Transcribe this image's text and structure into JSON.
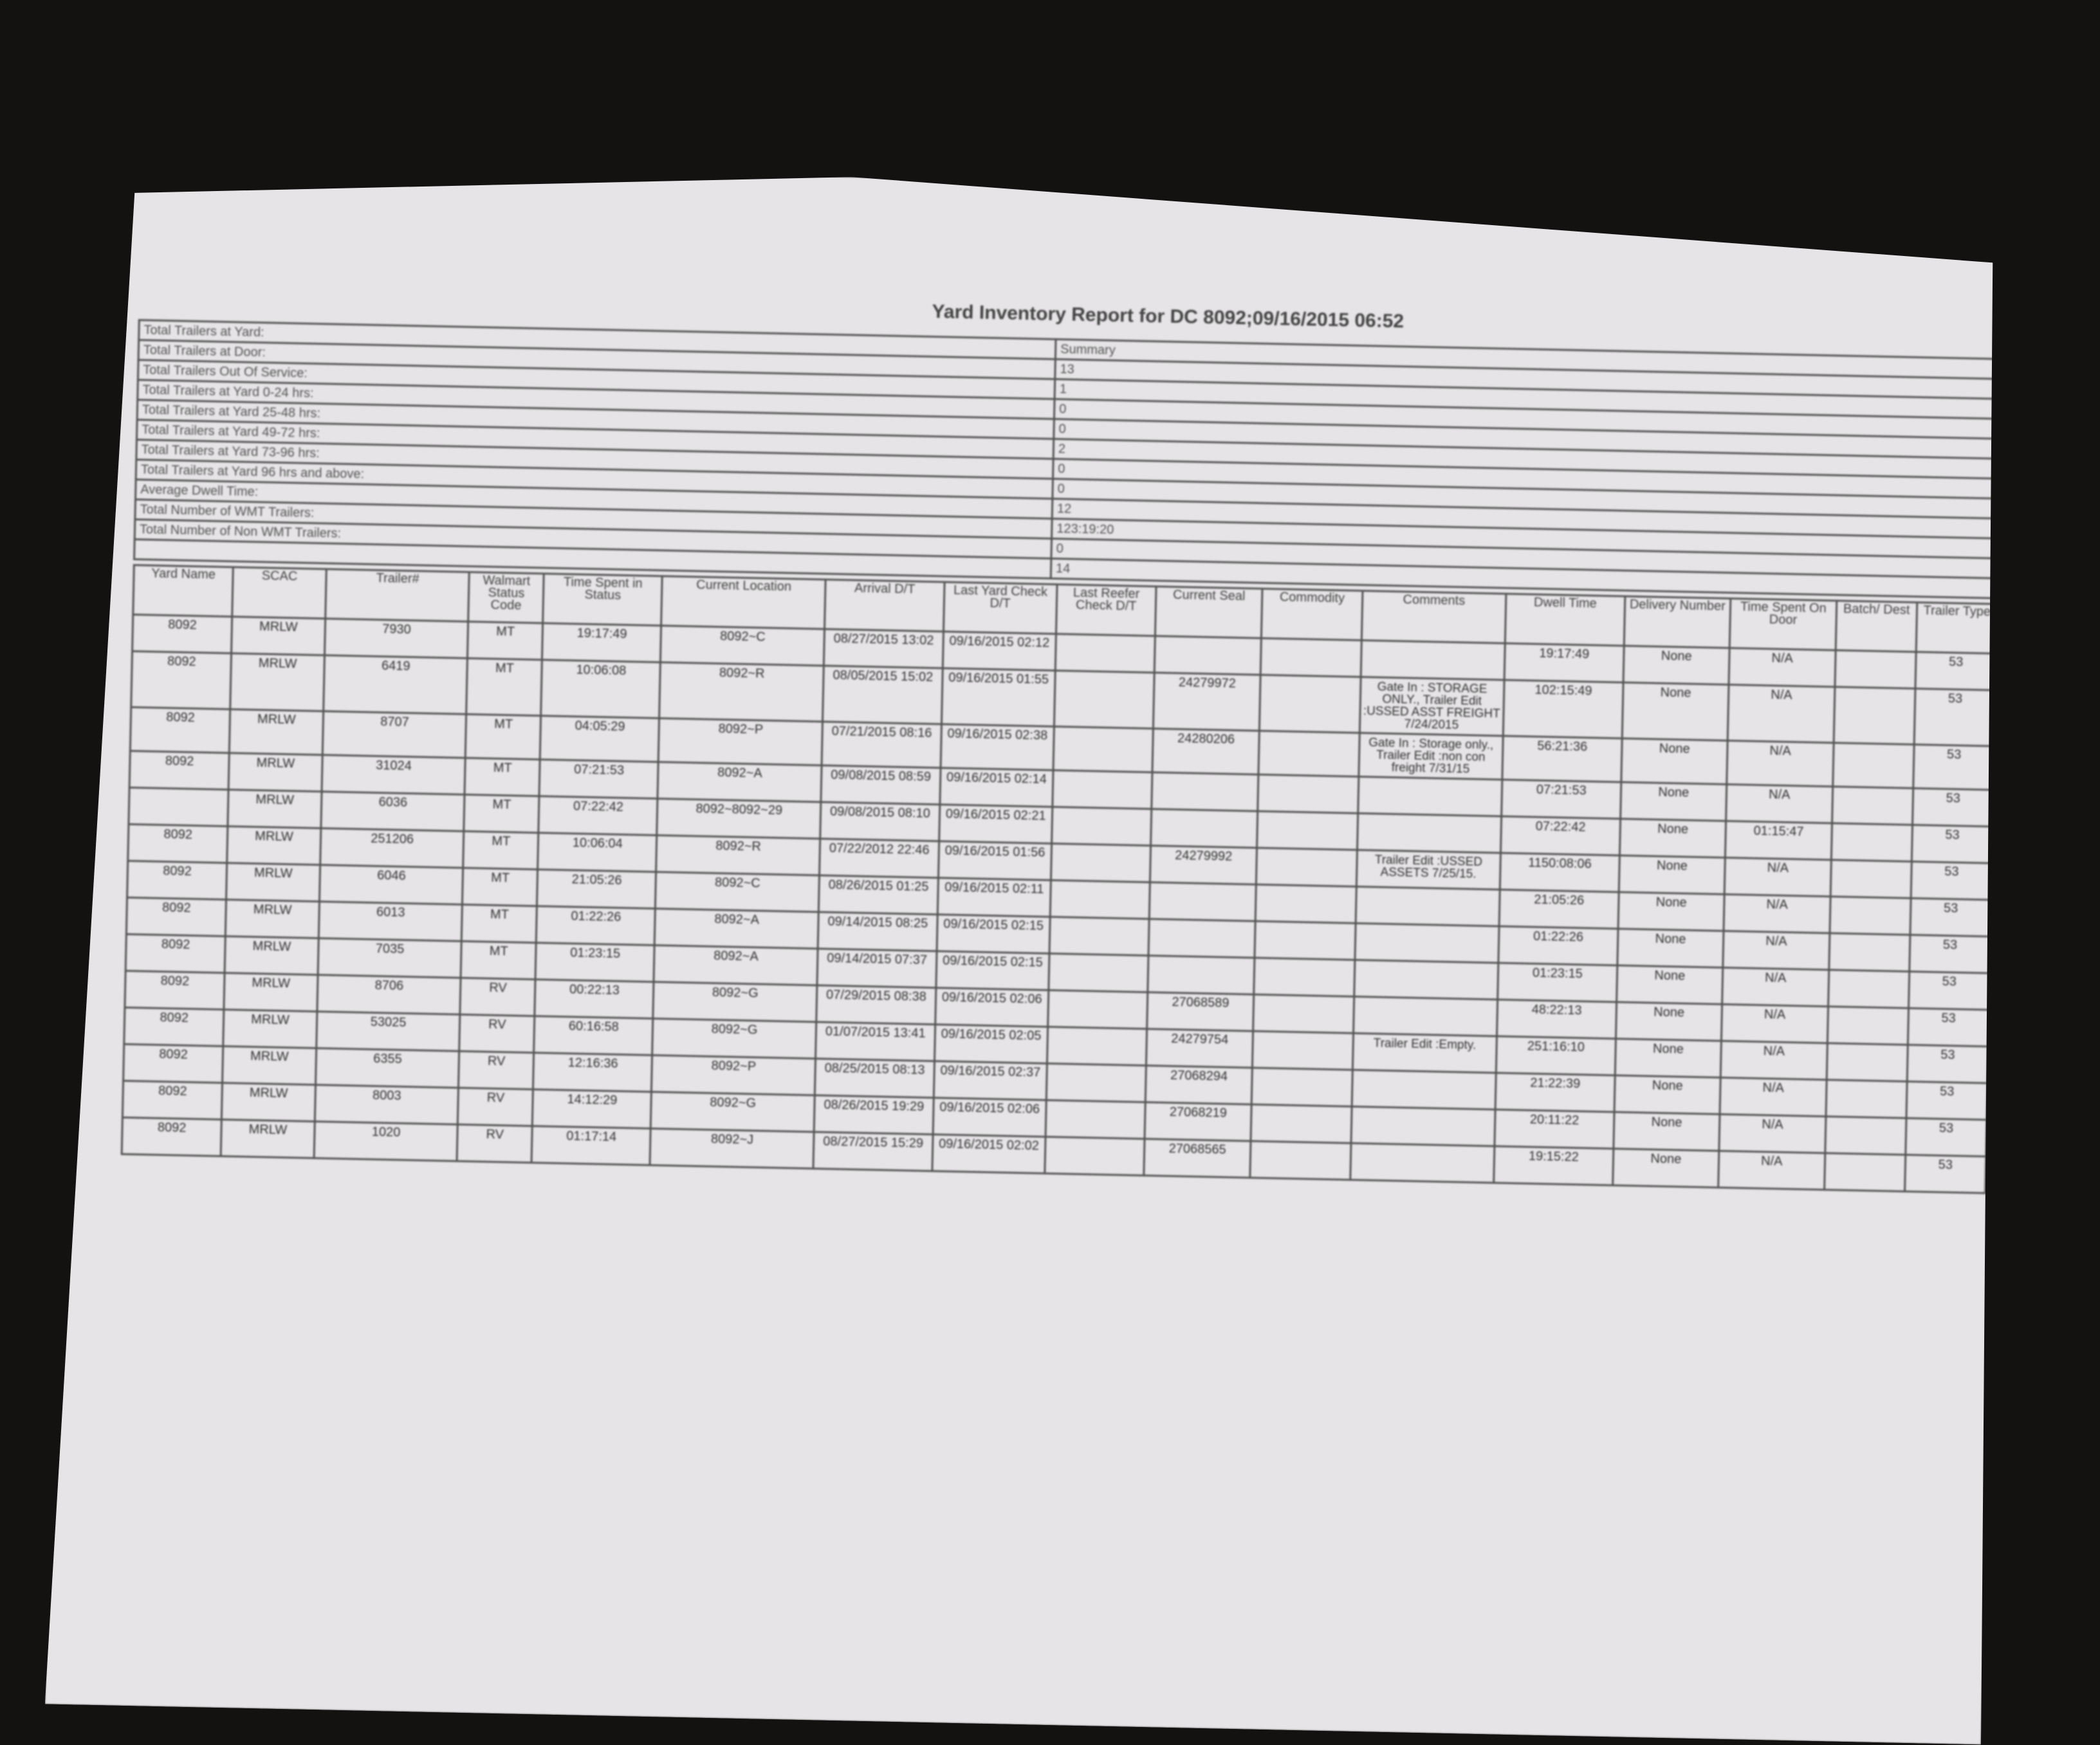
{
  "title": "Yard Inventory Report for DC 8092;09/16/2015 06:52",
  "summary": {
    "header": "Summary",
    "rows": [
      {
        "label": "Total Trailers at Yard:",
        "value": "Summary"
      },
      {
        "label": "Total Trailers at Door:",
        "value": "13"
      },
      {
        "label": "Total Trailers Out Of Service:",
        "value": "1"
      },
      {
        "label": "Total Trailers at Yard 0-24 hrs:",
        "value": "0"
      },
      {
        "label": "Total Trailers at Yard 25-48 hrs:",
        "value": "0"
      },
      {
        "label": "Total Trailers at Yard 49-72 hrs:",
        "value": "2"
      },
      {
        "label": "Total Trailers at Yard 73-96 hrs:",
        "value": "0"
      },
      {
        "label": "Total Trailers at Yard 96 hrs and above:",
        "value": "0"
      },
      {
        "label": "Average Dwell Time:",
        "value": "12"
      },
      {
        "label": "Total Number of WMT Trailers:",
        "value": "123:19:20"
      },
      {
        "label": "Total Number of Non WMT Trailers:",
        "value": "0"
      },
      {
        "label": "",
        "value": "14"
      }
    ]
  },
  "table": {
    "columns": [
      "Yard Name",
      "SCAC",
      "Trailer#",
      "Walmart Status Code",
      "Time Spent in Status",
      "Current Location",
      "Arrival D/T",
      "Last Yard Check D/T",
      "Last Reefer Check D/T",
      "Current Seal",
      "Commodity",
      "Comments",
      "Dwell Time",
      "Delivery Number",
      "Time Spent On Door",
      "Batch/ Dest",
      "Trailer Type"
    ],
    "rows": [
      [
        "8092",
        "MRLW",
        "7930",
        "MT",
        "19:17:49",
        "8092~C",
        "08/27/2015 13:02",
        "09/16/2015 02:12",
        "",
        "",
        "",
        "",
        "19:17:49",
        "None",
        "N/A",
        "",
        "53"
      ],
      [
        "8092",
        "MRLW",
        "6419",
        "MT",
        "10:06:08",
        "8092~R",
        "08/05/2015 15:02",
        "09/16/2015 01:55",
        "",
        "24279972",
        "",
        "Gate In : STORAGE ONLY., Trailer Edit :USSED ASST FREIGHT 7/24/2015",
        "102:15:49",
        "None",
        "N/A",
        "",
        "53"
      ],
      [
        "8092",
        "MRLW",
        "8707",
        "MT",
        "04:05:29",
        "8092~P",
        "07/21/2015 08:16",
        "09/16/2015 02:38",
        "",
        "24280206",
        "",
        "Gate In : Storage only., Trailer Edit :non con freight 7/31/15",
        "56:21:36",
        "None",
        "N/A",
        "",
        "53"
      ],
      [
        "8092",
        "MRLW",
        "31024",
        "MT",
        "07:21:53",
        "8092~A",
        "09/08/2015 08:59",
        "09/16/2015 02:14",
        "",
        "",
        "",
        "",
        "07:21:53",
        "None",
        "N/A",
        "",
        "53"
      ],
      [
        "",
        "MRLW",
        "6036",
        "MT",
        "07:22:42",
        "8092~8092~29",
        "09/08/2015 08:10",
        "09/16/2015 02:21",
        "",
        "",
        "",
        "",
        "07:22:42",
        "None",
        "01:15:47",
        "",
        "53"
      ],
      [
        "8092",
        "MRLW",
        "251206",
        "MT",
        "10:06:04",
        "8092~R",
        "07/22/2012 22:46",
        "09/16/2015 01:56",
        "",
        "24279992",
        "",
        "Trailer Edit :USSED ASSETS 7/25/15.",
        "1150:08:06",
        "None",
        "N/A",
        "",
        "53"
      ],
      [
        "8092",
        "MRLW",
        "6046",
        "MT",
        "21:05:26",
        "8092~C",
        "08/26/2015 01:25",
        "09/16/2015 02:11",
        "",
        "",
        "",
        "",
        "21:05:26",
        "None",
        "N/A",
        "",
        "53"
      ],
      [
        "8092",
        "MRLW",
        "6013",
        "MT",
        "01:22:26",
        "8092~A",
        "09/14/2015 08:25",
        "09/16/2015 02:15",
        "",
        "",
        "",
        "",
        "01:22:26",
        "None",
        "N/A",
        "",
        "53"
      ],
      [
        "8092",
        "MRLW",
        "7035",
        "MT",
        "01:23:15",
        "8092~A",
        "09/14/2015 07:37",
        "09/16/2015 02:15",
        "",
        "",
        "",
        "",
        "01:23:15",
        "None",
        "N/A",
        "",
        "53"
      ],
      [
        "8092",
        "MRLW",
        "8706",
        "RV",
        "00:22:13",
        "8092~G",
        "07/29/2015 08:38",
        "09/16/2015 02:06",
        "",
        "27068589",
        "",
        "",
        "48:22:13",
        "None",
        "N/A",
        "",
        "53"
      ],
      [
        "8092",
        "MRLW",
        "53025",
        "RV",
        "60:16:58",
        "8092~G",
        "01/07/2015 13:41",
        "09/16/2015 02:05",
        "",
        "24279754",
        "",
        "Trailer Edit :Empty.",
        "251:16:10",
        "None",
        "N/A",
        "",
        "53"
      ],
      [
        "8092",
        "MRLW",
        "6355",
        "RV",
        "12:16:36",
        "8092~P",
        "08/25/2015 08:13",
        "09/16/2015 02:37",
        "",
        "27068294",
        "",
        "",
        "21:22:39",
        "None",
        "N/A",
        "",
        "53"
      ],
      [
        "8092",
        "MRLW",
        "8003",
        "RV",
        "14:12:29",
        "8092~G",
        "08/26/2015 19:29",
        "09/16/2015 02:06",
        "",
        "27068219",
        "",
        "",
        "20:11:22",
        "None",
        "N/A",
        "",
        "53"
      ],
      [
        "8092",
        "MRLW",
        "1020",
        "RV",
        "01:17:14",
        "8092~J",
        "08/27/2015 15:29",
        "09/16/2015 02:02",
        "",
        "27068565",
        "",
        "",
        "19:15:22",
        "None",
        "N/A",
        "",
        "53"
      ]
    ]
  }
}
